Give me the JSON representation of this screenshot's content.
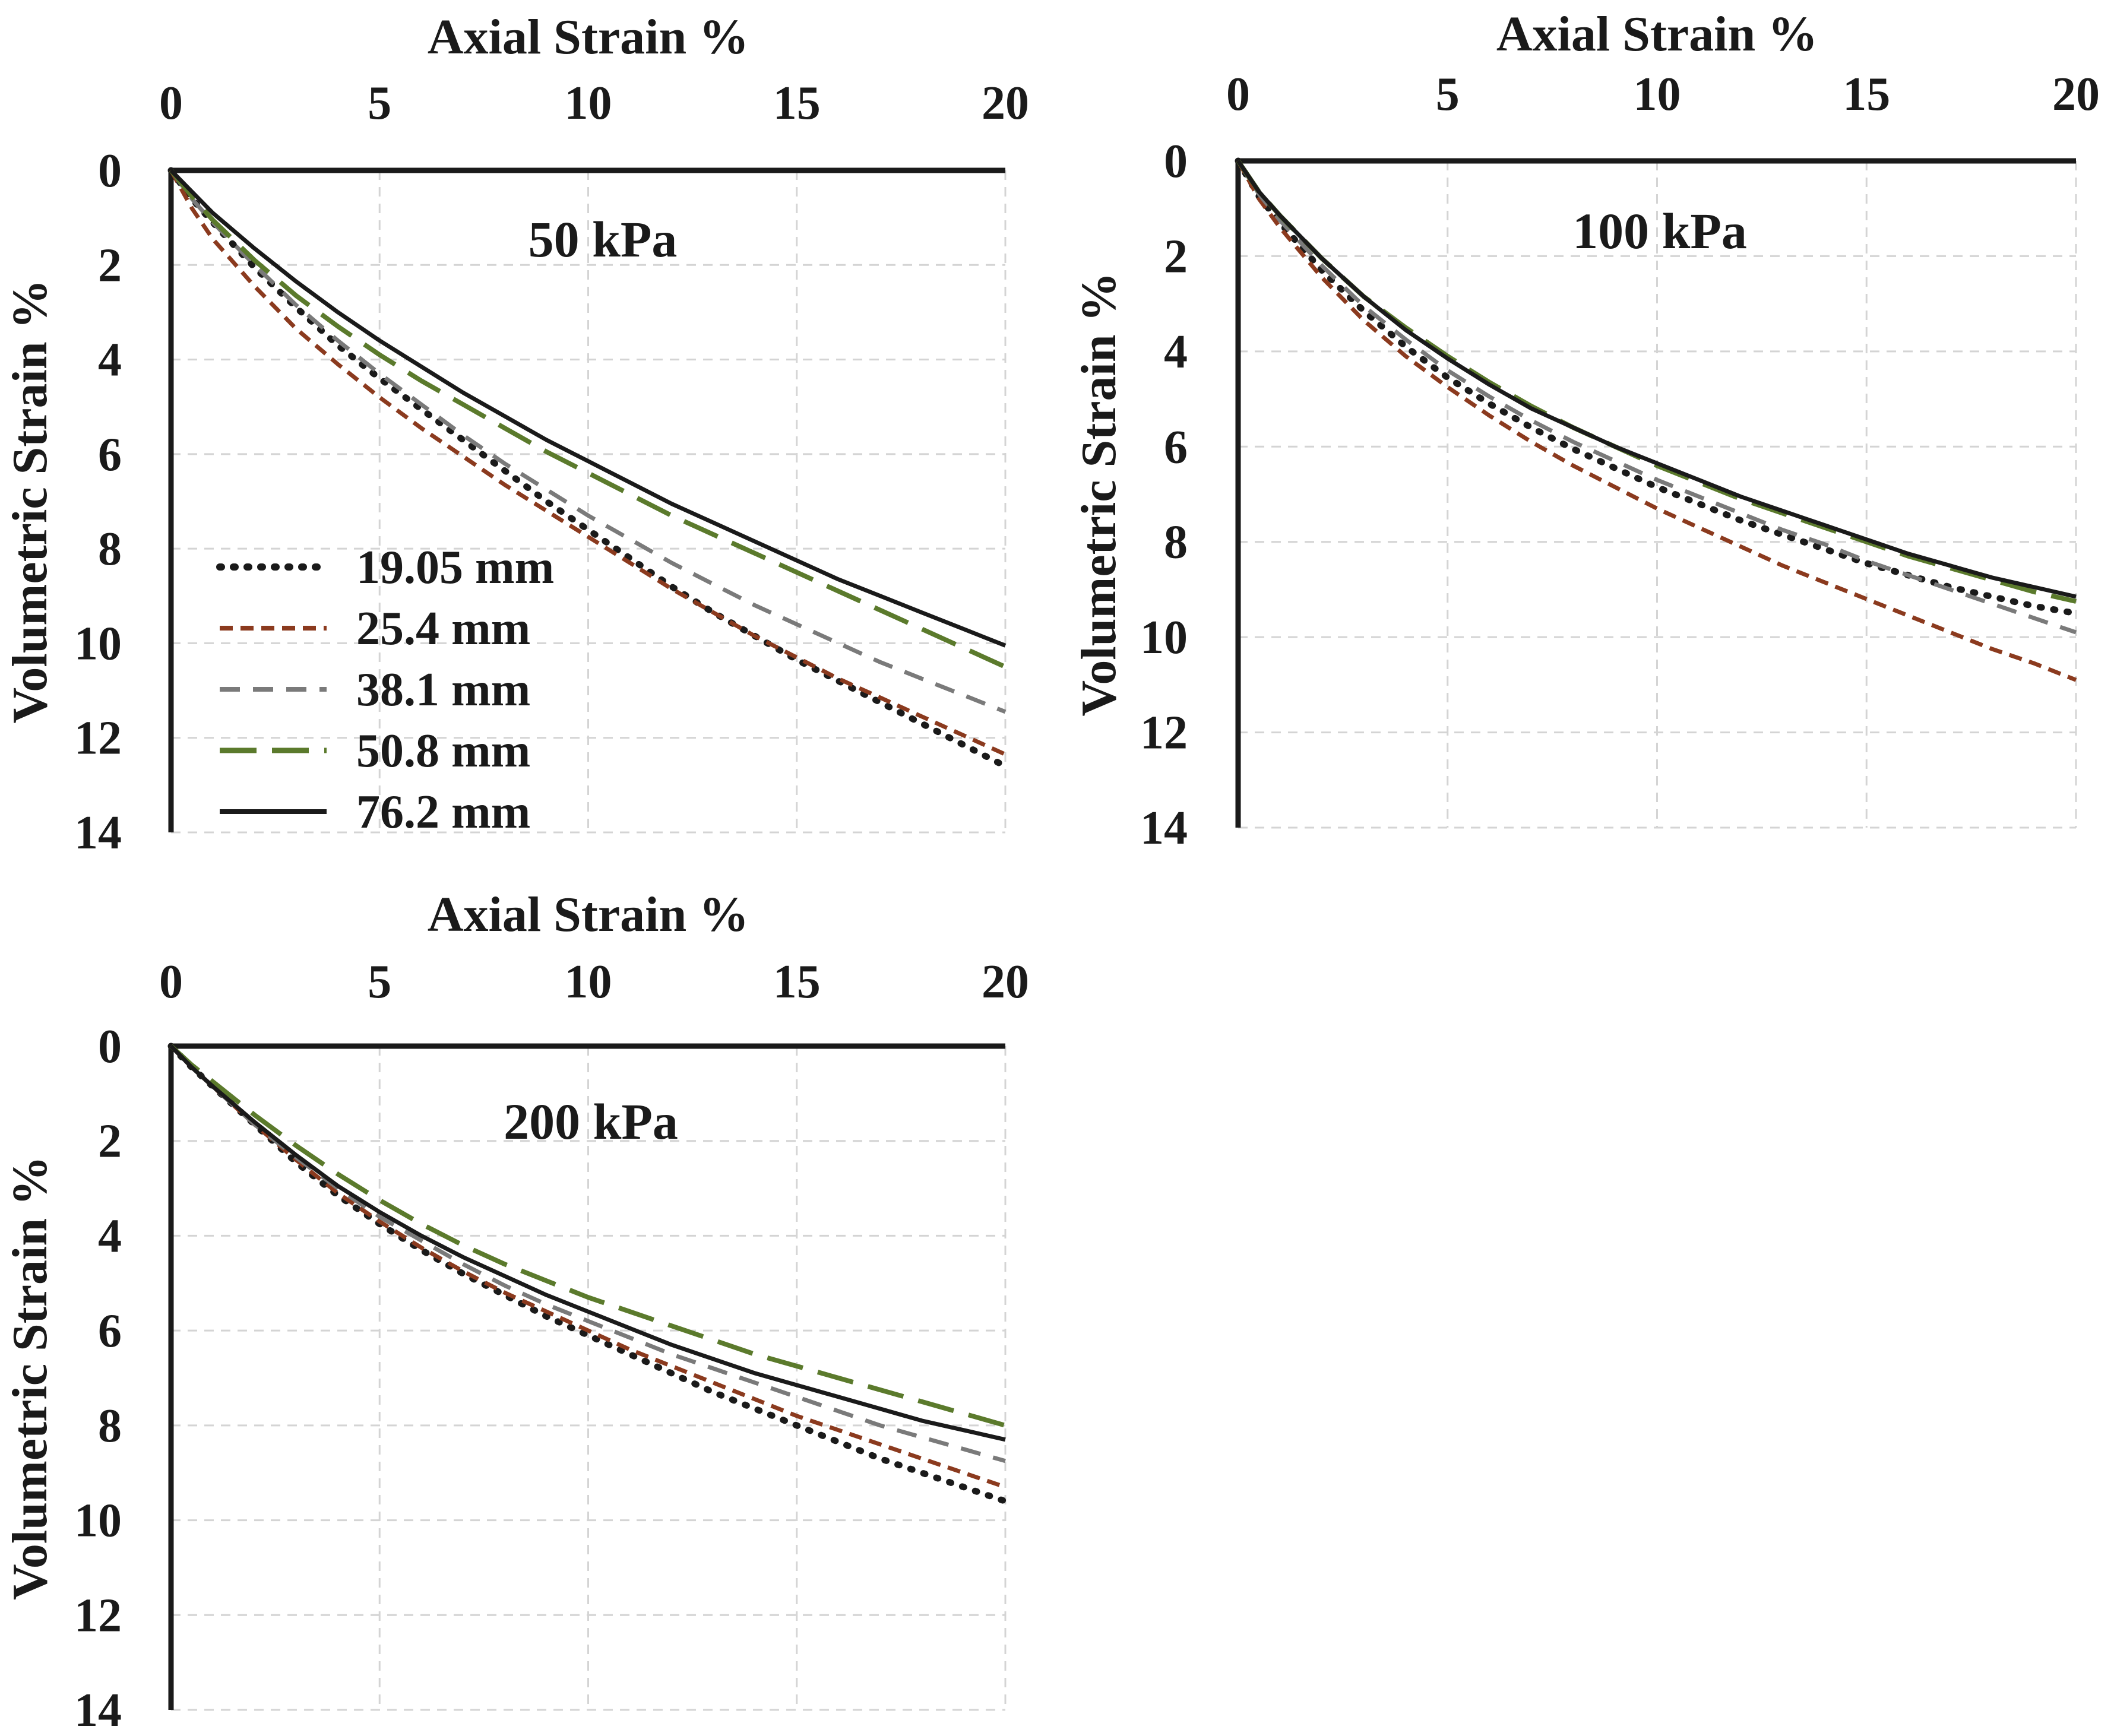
{
  "chart_data": [
    {
      "type": "line",
      "title": "50 kPa",
      "xlabel": "Axial Strain %",
      "ylabel": "Volumetric Strain %",
      "xlim": [
        0,
        20
      ],
      "ylim": [
        0,
        14
      ],
      "y_inverted": true,
      "x_axis_position": "top",
      "grid": true,
      "xticks": [
        "0",
        "5",
        "10",
        "15",
        "20"
      ],
      "yticks": [
        "0",
        "2",
        "4",
        "6",
        "8",
        "10",
        "12",
        "14"
      ],
      "legend": {
        "position": "lower-left",
        "entries": [
          "19.05 mm",
          "25.4 mm",
          "38.1 mm",
          "50.8 mm",
          "76.2 mm"
        ]
      },
      "x": [
        0,
        0.5,
        1,
        2,
        3,
        4,
        5,
        6,
        7,
        8,
        9,
        10,
        11,
        12,
        13,
        14,
        15,
        16,
        17,
        18,
        19,
        20
      ],
      "series": [
        {
          "name": "19.05 mm",
          "values": [
            0,
            0.6,
            1.1,
            2.05,
            2.9,
            3.7,
            4.4,
            5.05,
            5.7,
            6.35,
            7.0,
            7.6,
            8.2,
            8.8,
            9.35,
            9.85,
            10.35,
            10.8,
            11.25,
            11.7,
            12.15,
            12.6
          ]
        },
        {
          "name": "25.4 mm",
          "values": [
            0,
            0.8,
            1.45,
            2.45,
            3.35,
            4.1,
            4.8,
            5.45,
            6.05,
            6.65,
            7.2,
            7.75,
            8.3,
            8.85,
            9.35,
            9.85,
            10.3,
            10.75,
            11.15,
            11.55,
            11.95,
            12.35
          ]
        },
        {
          "name": "38.1 mm",
          "values": [
            0,
            0.6,
            1.1,
            2.0,
            2.85,
            3.6,
            4.3,
            4.95,
            5.6,
            6.2,
            6.75,
            7.3,
            7.8,
            8.3,
            8.75,
            9.2,
            9.6,
            10.0,
            10.4,
            10.75,
            11.1,
            11.45
          ]
        },
        {
          "name": "50.8 mm",
          "values": [
            0,
            0.55,
            1.05,
            1.9,
            2.65,
            3.3,
            3.9,
            4.45,
            4.95,
            5.45,
            5.95,
            6.4,
            6.85,
            7.3,
            7.7,
            8.1,
            8.5,
            8.9,
            9.3,
            9.7,
            10.1,
            10.5
          ]
        },
        {
          "name": "76.2 mm",
          "values": [
            0,
            0.45,
            0.9,
            1.65,
            2.35,
            3.0,
            3.6,
            4.15,
            4.7,
            5.2,
            5.7,
            6.15,
            6.6,
            7.05,
            7.45,
            7.85,
            8.25,
            8.65,
            9.0,
            9.35,
            9.7,
            10.05
          ]
        }
      ]
    },
    {
      "type": "line",
      "title": "100 kPa",
      "xlabel": "Axial Strain %",
      "ylabel": "Volumetric Strain %",
      "xlim": [
        0,
        20
      ],
      "ylim": [
        0,
        14
      ],
      "y_inverted": true,
      "x_axis_position": "top",
      "grid": true,
      "xticks": [
        "0",
        "5",
        "10",
        "15",
        "20"
      ],
      "yticks": [
        "0",
        "2",
        "4",
        "6",
        "8",
        "10",
        "12",
        "14"
      ],
      "x": [
        0,
        0.5,
        1,
        2,
        3,
        4,
        5,
        6,
        7,
        8,
        9,
        10,
        11,
        12,
        13,
        14,
        15,
        16,
        17,
        18,
        19,
        20
      ],
      "series": [
        {
          "name": "19.05 mm",
          "values": [
            0,
            0.75,
            1.3,
            2.3,
            3.15,
            3.9,
            4.55,
            5.1,
            5.6,
            6.05,
            6.45,
            6.85,
            7.2,
            7.55,
            7.85,
            8.15,
            8.45,
            8.7,
            8.95,
            9.15,
            9.35,
            9.5
          ]
        },
        {
          "name": "25.4 mm",
          "values": [
            0,
            0.8,
            1.4,
            2.45,
            3.35,
            4.1,
            4.75,
            5.35,
            5.9,
            6.4,
            6.85,
            7.3,
            7.7,
            8.1,
            8.5,
            8.85,
            9.2,
            9.55,
            9.9,
            10.25,
            10.55,
            10.9
          ]
        },
        {
          "name": "38.1 mm",
          "values": [
            0,
            0.7,
            1.25,
            2.2,
            3.05,
            3.75,
            4.4,
            4.95,
            5.45,
            5.9,
            6.3,
            6.7,
            7.05,
            7.4,
            7.75,
            8.05,
            8.4,
            8.7,
            9.0,
            9.3,
            9.6,
            9.9
          ]
        },
        {
          "name": "50.8 mm",
          "values": [
            0,
            0.65,
            1.15,
            2.05,
            2.85,
            3.5,
            4.1,
            4.65,
            5.15,
            5.6,
            6.0,
            6.4,
            6.75,
            7.1,
            7.4,
            7.7,
            8.0,
            8.3,
            8.55,
            8.8,
            9.05,
            9.25
          ]
        },
        {
          "name": "76.2 mm",
          "values": [
            0,
            0.65,
            1.15,
            2.05,
            2.85,
            3.55,
            4.15,
            4.7,
            5.2,
            5.6,
            6.0,
            6.35,
            6.7,
            7.05,
            7.35,
            7.65,
            7.95,
            8.25,
            8.5,
            8.75,
            8.95,
            9.15
          ]
        }
      ]
    },
    {
      "type": "line",
      "title": "200 kPa",
      "xlabel": "Axial Strain %",
      "ylabel": "Volumetric Strain %",
      "xlim": [
        0,
        20
      ],
      "ylim": [
        0,
        14
      ],
      "y_inverted": true,
      "x_axis_position": "top",
      "grid": true,
      "xticks": [
        "0",
        "5",
        "10",
        "15",
        "20"
      ],
      "yticks": [
        "0",
        "2",
        "4",
        "6",
        "8",
        "10",
        "12",
        "14"
      ],
      "x": [
        0,
        0.5,
        1,
        2,
        3,
        4,
        5,
        6,
        7,
        8,
        9,
        10,
        11,
        12,
        13,
        14,
        15,
        16,
        17,
        18,
        19,
        20
      ],
      "series": [
        {
          "name": "19.05 mm",
          "values": [
            0,
            0.45,
            0.85,
            1.65,
            2.45,
            3.15,
            3.75,
            4.3,
            4.8,
            5.25,
            5.7,
            6.1,
            6.5,
            6.9,
            7.3,
            7.65,
            8.0,
            8.35,
            8.7,
            9.0,
            9.3,
            9.6
          ]
        },
        {
          "name": "25.4 mm",
          "values": [
            0,
            0.45,
            0.85,
            1.65,
            2.4,
            3.1,
            3.7,
            4.25,
            4.75,
            5.2,
            5.6,
            6.0,
            6.4,
            6.75,
            7.1,
            7.45,
            7.8,
            8.1,
            8.4,
            8.7,
            9.0,
            9.3
          ]
        },
        {
          "name": "38.1 mm",
          "values": [
            0,
            0.45,
            0.85,
            1.65,
            2.35,
            3.0,
            3.6,
            4.1,
            4.6,
            5.05,
            5.45,
            5.8,
            6.15,
            6.5,
            6.8,
            7.1,
            7.4,
            7.7,
            8.0,
            8.25,
            8.5,
            8.75
          ]
        },
        {
          "name": "50.8 mm",
          "values": [
            0,
            0.4,
            0.75,
            1.45,
            2.1,
            2.7,
            3.25,
            3.75,
            4.2,
            4.6,
            4.95,
            5.3,
            5.6,
            5.9,
            6.2,
            6.5,
            6.75,
            7.0,
            7.25,
            7.5,
            7.75,
            8.0
          ]
        },
        {
          "name": "76.2 mm",
          "values": [
            0,
            0.45,
            0.85,
            1.6,
            2.3,
            2.95,
            3.5,
            4.0,
            4.45,
            4.85,
            5.25,
            5.6,
            5.95,
            6.3,
            6.6,
            6.9,
            7.15,
            7.4,
            7.65,
            7.9,
            8.1,
            8.3
          ]
        }
      ]
    }
  ],
  "series_styles": [
    {
      "color": "#1a1a1a",
      "dash": "dotted"
    },
    {
      "color": "#8b3a1e",
      "dash": "short-dash"
    },
    {
      "color": "#7a7a7a",
      "dash": "dash"
    },
    {
      "color": "#5b7a2c",
      "dash": "long-dash"
    },
    {
      "color": "#1a1a1a",
      "dash": "solid"
    }
  ],
  "grid_color": "#d4d4d4",
  "axis_color": "#1a1a1a"
}
